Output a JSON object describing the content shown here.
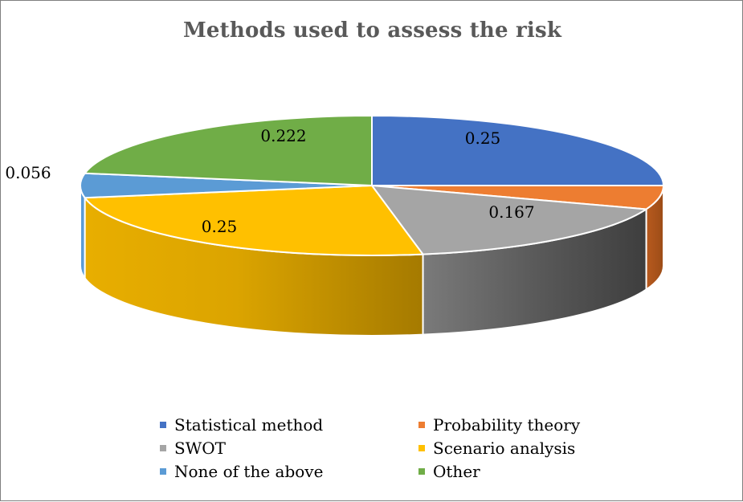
{
  "chart_data": {
    "type": "pie",
    "title": "Methods used to assess the risk",
    "categories": [
      "Statistical method",
      "Probability theory",
      "SWOT",
      "Scenario analysis",
      "None of the above",
      "Other"
    ],
    "values": [
      0.25,
      0.055,
      0.167,
      0.25,
      0.056,
      0.222
    ],
    "data_labels": [
      "0.25",
      "",
      "0.167",
      "0.25",
      "0.056",
      "0.222"
    ],
    "colors": [
      "#4472c4",
      "#ed7d31",
      "#a5a5a5",
      "#ffc000",
      "#5b9bd5",
      "#70ad47"
    ],
    "legend_position": "bottom",
    "style": "3d-pie"
  }
}
